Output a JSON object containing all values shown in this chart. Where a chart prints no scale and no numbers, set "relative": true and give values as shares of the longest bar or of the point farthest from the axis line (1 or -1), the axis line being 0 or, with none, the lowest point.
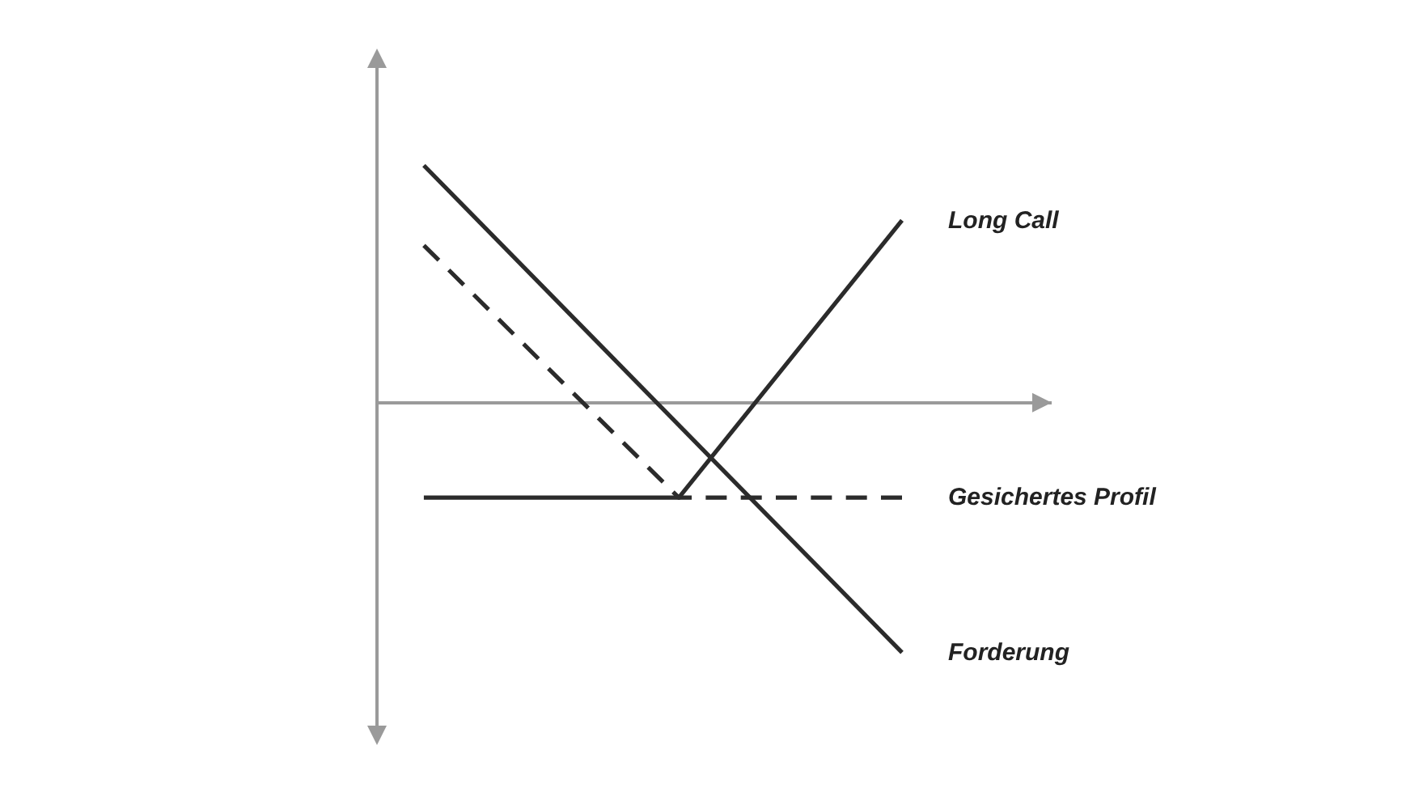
{
  "chart_data": {
    "type": "line",
    "relative": true,
    "grid": false,
    "legend": false,
    "tick_labels": false,
    "marker": "none",
    "categories": [
      null,
      null,
      null,
      null,
      null,
      null,
      null,
      null,
      null,
      null,
      null,
      null,
      null,
      null,
      null,
      null
    ],
    "series": [
      {
        "name": "Long Call",
        "color": "#2b2b2b",
        "line_style": "solid",
        "values": [
          -0.38,
          null,
          null,
          null,
          null,
          null,
          null,
          null,
          -0.38,
          null,
          null,
          null,
          null,
          null,
          null,
          0.73
        ]
      },
      {
        "name": "Gesichertes Profil",
        "color": "#2b2b2b",
        "line_style": "dashed",
        "values": [
          0.63,
          null,
          null,
          null,
          null,
          null,
          null,
          null,
          -0.38,
          null,
          null,
          null,
          null,
          null,
          null,
          -0.38
        ]
      },
      {
        "name": "Forderung",
        "color": "#2b2b2b",
        "line_style": "solid",
        "values": [
          0.95,
          null,
          null,
          null,
          null,
          null,
          null,
          null,
          null,
          null,
          null,
          null,
          null,
          null,
          null,
          -1
        ]
      }
    ]
  }
}
